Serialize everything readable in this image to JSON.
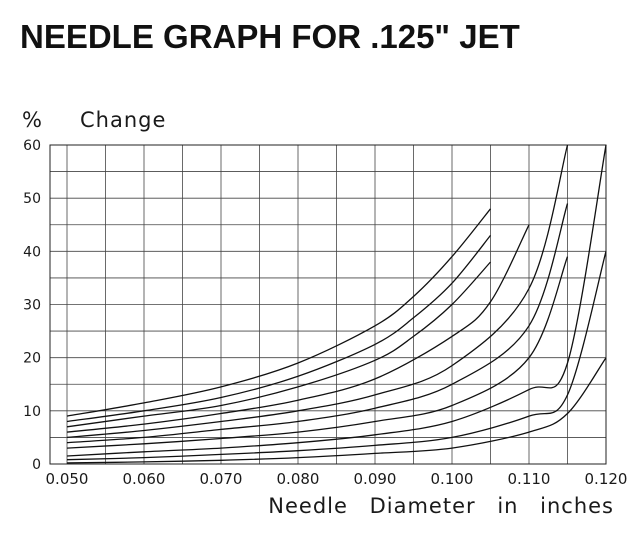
{
  "chart_data": {
    "type": "line",
    "title": "NEEDLE GRAPH FOR .125\" JET",
    "ylabel_symbol": "%",
    "ylabel": "Change",
    "xlabel": "Needle Diameter in inches",
    "xlim": [
      0.05,
      0.12
    ],
    "ylim": [
      0,
      60
    ],
    "x_ticks": [
      "0.050",
      "0.060",
      "0.070",
      "0.080",
      "0.090",
      "0.100",
      "0.110",
      "0.120"
    ],
    "y_ticks": [
      "0",
      "10",
      "20",
      "30",
      "40",
      "50",
      "60"
    ],
    "grid": true,
    "series": [
      {
        "x": [
          0.05,
          0.06,
          0.07,
          0.08,
          0.09,
          0.095,
          0.1,
          0.105
        ],
        "y": [
          9,
          11.5,
          14.5,
          19,
          26,
          31.5,
          39,
          48
        ]
      },
      {
        "x": [
          0.05,
          0.06,
          0.07,
          0.08,
          0.09,
          0.095,
          0.1,
          0.105
        ],
        "y": [
          8,
          10,
          12.5,
          16.5,
          22.5,
          27.5,
          34,
          43
        ]
      },
      {
        "x": [
          0.05,
          0.06,
          0.07,
          0.08,
          0.09,
          0.095,
          0.1,
          0.105
        ],
        "y": [
          7,
          9,
          11,
          14.5,
          19.5,
          24,
          30,
          38
        ]
      },
      {
        "x": [
          0.05,
          0.06,
          0.07,
          0.08,
          0.09,
          0.1,
          0.105,
          0.11
        ],
        "y": [
          6,
          7.5,
          9.5,
          12,
          16,
          24,
          30.5,
          45
        ]
      },
      {
        "x": [
          0.05,
          0.06,
          0.07,
          0.08,
          0.09,
          0.1,
          0.11,
          0.115
        ],
        "y": [
          5,
          6.3,
          8,
          10,
          13,
          18.5,
          33,
          60
        ]
      },
      {
        "x": [
          0.05,
          0.06,
          0.07,
          0.08,
          0.09,
          0.1,
          0.11,
          0.115
        ],
        "y": [
          4,
          5,
          6.5,
          8,
          10.5,
          15,
          26,
          49
        ]
      },
      {
        "x": [
          0.05,
          0.06,
          0.07,
          0.08,
          0.09,
          0.1,
          0.11,
          0.115
        ],
        "y": [
          3,
          3.8,
          4.8,
          6,
          8,
          11,
          20,
          39
        ]
      },
      {
        "x": [
          0.05,
          0.06,
          0.07,
          0.08,
          0.09,
          0.1,
          0.11,
          0.115,
          0.12
        ],
        "y": [
          1.5,
          2.3,
          3,
          4,
          5.5,
          8,
          14,
          19,
          60
        ]
      },
      {
        "x": [
          0.05,
          0.06,
          0.07,
          0.08,
          0.09,
          0.1,
          0.11,
          0.115,
          0.12
        ],
        "y": [
          0.8,
          1.2,
          1.8,
          2.5,
          3.5,
          5,
          9,
          13,
          40
        ]
      },
      {
        "x": [
          0.05,
          0.06,
          0.07,
          0.08,
          0.09,
          0.1,
          0.11,
          0.115,
          0.12
        ],
        "y": [
          0.2,
          0.4,
          0.7,
          1.2,
          2,
          3,
          6,
          9.5,
          20
        ]
      }
    ]
  }
}
